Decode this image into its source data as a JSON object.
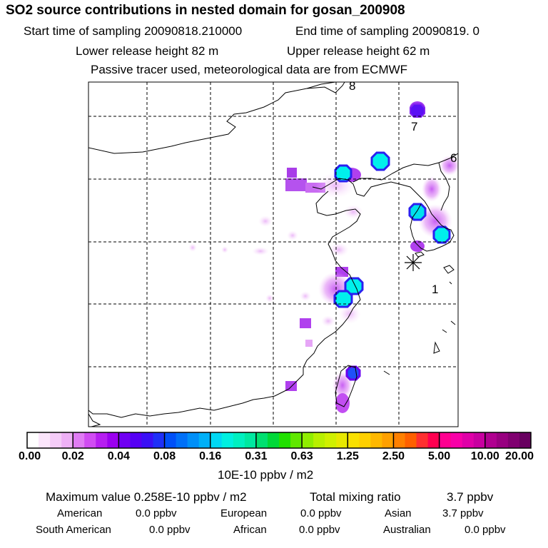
{
  "header": {
    "title": "SO2 source contributions in nested domain for gosan_200908",
    "start_label": "Start time of sampling 20090818.210000",
    "end_label": "End time of sampling 20090819.     0",
    "lower_label": "Lower release height   82 m",
    "upper_label": "Upper release height   62 m",
    "note": "Passive tracer used, meteorological data are from ECMWF"
  },
  "map": {
    "region_labels": [
      "8",
      "7",
      "6",
      "1"
    ],
    "receptor_marker": "asterisk"
  },
  "colorbar": {
    "ticks": [
      "0.00",
      "0.02",
      "0.04",
      "0.08",
      "0.16",
      "0.31",
      "0.63",
      "1.25",
      "2.50",
      "5.00",
      "10.00",
      "20.00"
    ],
    "colors": [
      "#ffffff",
      "#fbe5fb",
      "#f5ccf8",
      "#eeb0f6",
      "#e07cf4",
      "#d04cf2",
      "#b61ef0",
      "#9b00ef",
      "#7000f3",
      "#5500f4",
      "#3a10f6",
      "#1f30f8",
      "#0050f8",
      "#0070f8",
      "#008ff8",
      "#00b0f8",
      "#00d8f4",
      "#00f0e0",
      "#00f0c0",
      "#00e8a0",
      "#00e070",
      "#00d838",
      "#20e000",
      "#60e800",
      "#90ee00",
      "#b8f000",
      "#d0f000",
      "#e8e800",
      "#f8e000",
      "#ffd000",
      "#ffb800",
      "#ffa000",
      "#ff8000",
      "#ff6000",
      "#ff3030",
      "#ff0050",
      "#ff0090",
      "#f800a8",
      "#e000a8",
      "#c800a0",
      "#b00090",
      "#980080",
      "#800070",
      "#680060"
    ],
    "unit": "10E-10 ppbv / m2"
  },
  "summary": {
    "max_label": "Maximum value  0.258E-10 ppbv / m2",
    "total_label": "Total mixing ratio",
    "total_value": "3.7 ppbv",
    "regions": [
      {
        "name": "American",
        "value": "0.0 ppbv"
      },
      {
        "name": "European",
        "value": "0.0 ppbv"
      },
      {
        "name": "Asian",
        "value": "3.7 ppbv"
      },
      {
        "name": "South American",
        "value": "0.0 ppbv"
      },
      {
        "name": "African",
        "value": "0.0 ppbv"
      },
      {
        "name": "Australian",
        "value": "0.0 ppbv"
      }
    ]
  }
}
